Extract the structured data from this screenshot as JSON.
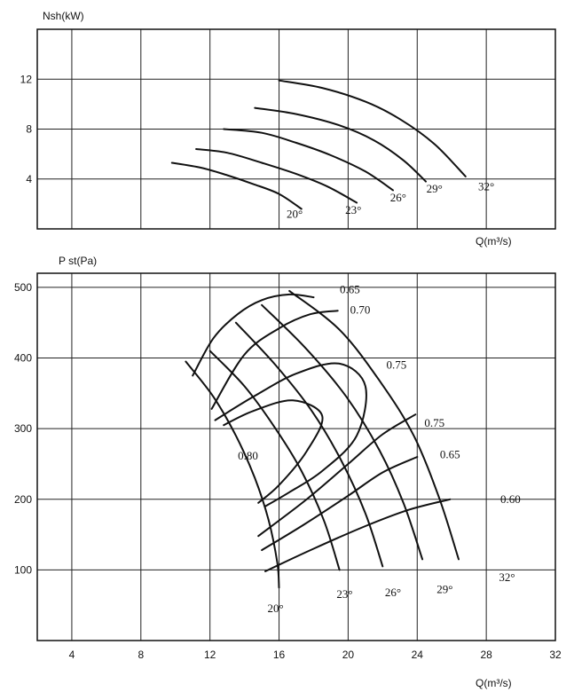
{
  "chart_data": [
    {
      "type": "line",
      "title": "",
      "ylabel": "Nsh(kW)",
      "xlabel": "Q(m³/s)",
      "xlim": [
        2,
        32
      ],
      "ylim": [
        0,
        16
      ],
      "x_ticks": [],
      "y_ticks": [
        4,
        8,
        12
      ],
      "grid": true,
      "series": [
        {
          "name": "20°",
          "x": [
            9.8,
            11.5,
            13,
            14.5,
            16,
            17.3
          ],
          "y": [
            5.3,
            4.9,
            4.3,
            3.6,
            2.8,
            1.6
          ]
        },
        {
          "name": "23°",
          "x": [
            11.2,
            13,
            15,
            17,
            18.8,
            20.5
          ],
          "y": [
            6.4,
            6.1,
            5.3,
            4.4,
            3.4,
            2.1
          ]
        },
        {
          "name": "26°",
          "x": [
            12.8,
            15,
            17,
            19,
            21,
            22.6
          ],
          "y": [
            8.0,
            7.7,
            6.9,
            5.9,
            4.6,
            3.1
          ]
        },
        {
          "name": "29°",
          "x": [
            14.6,
            17,
            19.5,
            21.5,
            23.2,
            24.5
          ],
          "y": [
            9.7,
            9.2,
            8.3,
            7.1,
            5.5,
            3.8
          ]
        },
        {
          "name": "32°",
          "x": [
            16.0,
            18.5,
            21,
            23,
            25,
            26.8
          ],
          "y": [
            11.9,
            11.3,
            10.2,
            8.8,
            6.8,
            4.2
          ]
        }
      ],
      "annotations": [
        {
          "text": "20°",
          "x": 16.9,
          "y": 0.9
        },
        {
          "text": "23°",
          "x": 20.3,
          "y": 1.2
        },
        {
          "text": "26°",
          "x": 22.9,
          "y": 2.2
        },
        {
          "text": "29°",
          "x": 25.0,
          "y": 2.9
        },
        {
          "text": "32°",
          "x": 28.0,
          "y": 3.1
        }
      ]
    },
    {
      "type": "line",
      "title": "",
      "ylabel": "P st(Pa)",
      "xlabel": "Q(m³/s)",
      "xlim": [
        2,
        32
      ],
      "ylim": [
        0,
        520
      ],
      "x_ticks": [
        4,
        8,
        12,
        16,
        20,
        24,
        28,
        32
      ],
      "y_ticks": [
        100,
        200,
        300,
        400,
        500
      ],
      "grid": true,
      "series": [
        {
          "name": "20°",
          "x": [
            10.6,
            12.2,
            13.5,
            14.6,
            15.4,
            15.9,
            16.0
          ],
          "y": [
            395,
            345,
            290,
            230,
            170,
            110,
            75
          ]
        },
        {
          "name": "23°",
          "x": [
            12.0,
            14.0,
            15.8,
            17.3,
            18.6,
            19.5
          ],
          "y": [
            410,
            360,
            300,
            240,
            170,
            100
          ]
        },
        {
          "name": "26°",
          "x": [
            13.5,
            15.8,
            17.9,
            19.6,
            21.0,
            22.0
          ],
          "y": [
            450,
            390,
            325,
            255,
            180,
            105
          ]
        },
        {
          "name": "29°",
          "x": [
            15.0,
            17.5,
            19.9,
            21.8,
            23.2,
            24.3
          ],
          "y": [
            475,
            415,
            345,
            270,
            195,
            115
          ]
        },
        {
          "name": "32°",
          "x": [
            16.6,
            19.5,
            21.9,
            23.8,
            25.3,
            26.4
          ],
          "y": [
            495,
            440,
            365,
            290,
            200,
            115
          ]
        },
        {
          "name": "0.65",
          "x": [
            11.0,
            12.2,
            13.6,
            15.0,
            16.6,
            18.0
          ],
          "y": [
            375,
            428,
            462,
            482,
            490,
            486
          ]
        },
        {
          "name": "0.70",
          "x": [
            12.1,
            14.0,
            16.0,
            17.8,
            19.4
          ],
          "y": [
            328,
            405,
            442,
            462,
            467
          ]
        },
        {
          "name": "0.75",
          "x": [
            12.3,
            14.5,
            17.0,
            19.5,
            21.0,
            20.5,
            18.5,
            16.6,
            15.2
          ],
          "y": [
            312,
            345,
            378,
            392,
            360,
            290,
            240,
            210,
            190
          ]
        },
        {
          "name": "0.80",
          "x": [
            12.8,
            14.5,
            16.8,
            18.5,
            17.6,
            16.0,
            14.8
          ],
          "y": [
            305,
            325,
            340,
            318,
            268,
            220,
            195
          ]
        },
        {
          "name": "0.75",
          "x": [
            14.8,
            17.5,
            20.0,
            22.0,
            23.9
          ],
          "y": [
            148,
            198,
            250,
            292,
            320
          ]
        },
        {
          "name": "0.65",
          "x": [
            15.0,
            17.5,
            20.0,
            22.0,
            24.0
          ],
          "y": [
            128,
            165,
            205,
            238,
            260
          ]
        },
        {
          "name": "0.60",
          "x": [
            15.2,
            18.0,
            21.0,
            23.5,
            25.9
          ],
          "y": [
            98,
            130,
            162,
            185,
            200
          ]
        }
      ],
      "annotations": [
        {
          "text": "0.65",
          "x": 20.1,
          "y": 492
        },
        {
          "text": "0.70",
          "x": 20.7,
          "y": 463
        },
        {
          "text": "0.75",
          "x": 22.8,
          "y": 385
        },
        {
          "text": "0.80",
          "x": 14.2,
          "y": 256
        },
        {
          "text": "0.75",
          "x": 25.0,
          "y": 303
        },
        {
          "text": "0.65",
          "x": 25.9,
          "y": 258
        },
        {
          "text": "0.60",
          "x": 29.4,
          "y": 195
        },
        {
          "text": "20°",
          "x": 15.8,
          "y": 40
        },
        {
          "text": "23°",
          "x": 19.8,
          "y": 60
        },
        {
          "text": "26°",
          "x": 22.6,
          "y": 63
        },
        {
          "text": "29°",
          "x": 25.6,
          "y": 67
        },
        {
          "text": "32°",
          "x": 29.2,
          "y": 84
        }
      ]
    }
  ]
}
